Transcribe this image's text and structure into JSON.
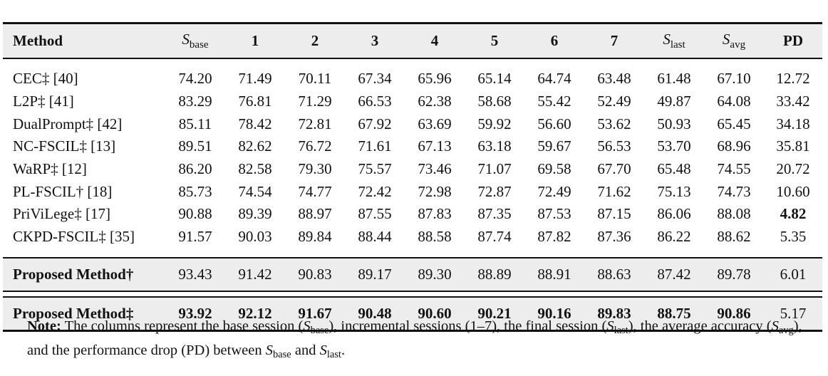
{
  "table": {
    "header": {
      "method": "Method",
      "s_base_sym": "S",
      "s_base_sub": "base",
      "sessions": [
        "1",
        "2",
        "3",
        "4",
        "5",
        "6",
        "7"
      ],
      "s_last_sym": "S",
      "s_last_sub": "last",
      "s_avg_sym": "S",
      "s_avg_sub": "avg",
      "pd": "PD"
    },
    "rows": [
      {
        "method": "CEC‡ [40]",
        "values": [
          "74.20",
          "71.49",
          "70.11",
          "67.34",
          "65.96",
          "65.14",
          "64.74",
          "63.48",
          "61.48",
          "67.10",
          "12.72"
        ]
      },
      {
        "method": "L2P‡ [41]",
        "values": [
          "83.29",
          "76.81",
          "71.29",
          "66.53",
          "62.38",
          "58.68",
          "55.42",
          "52.49",
          "49.87",
          "64.08",
          "33.42"
        ]
      },
      {
        "method": "DualPrompt‡ [42]",
        "values": [
          "85.11",
          "78.42",
          "72.81",
          "67.92",
          "63.69",
          "59.92",
          "56.60",
          "53.62",
          "50.93",
          "65.45",
          "34.18"
        ]
      },
      {
        "method": "NC-FSCIL‡ [13]",
        "values": [
          "89.51",
          "82.62",
          "76.72",
          "71.61",
          "67.13",
          "63.18",
          "59.67",
          "56.53",
          "53.70",
          "68.96",
          "35.81"
        ]
      },
      {
        "method": "WaRP‡ [12]",
        "values": [
          "86.20",
          "82.58",
          "79.30",
          "75.57",
          "73.46",
          "71.07",
          "69.58",
          "67.70",
          "65.48",
          "74.55",
          "20.72"
        ]
      },
      {
        "method": "PL-FSCIL† [18]",
        "values": [
          "85.73",
          "74.54",
          "74.77",
          "72.42",
          "72.98",
          "72.87",
          "72.49",
          "71.62",
          "75.13",
          "74.73",
          "10.60"
        ]
      },
      {
        "method": "PriViLege‡ [17]",
        "values": [
          "90.88",
          "89.39",
          "88.97",
          "87.55",
          "87.83",
          "87.35",
          "87.53",
          "87.15",
          "86.06",
          "88.08",
          "4.82"
        ]
      },
      {
        "method": "CKPD-FSCIL‡ [35]",
        "values": [
          "91.57",
          "90.03",
          "89.84",
          "88.44",
          "88.58",
          "87.74",
          "87.82",
          "87.36",
          "86.22",
          "88.62",
          "5.35"
        ]
      }
    ],
    "proposed_dagger": {
      "method": "Proposed Method†",
      "values": [
        "93.43",
        "91.42",
        "90.83",
        "89.17",
        "89.30",
        "88.89",
        "88.91",
        "88.63",
        "87.42",
        "89.78",
        "6.01"
      ]
    },
    "proposed_ddagger": {
      "method": "Proposed Method‡",
      "values": [
        "93.92",
        "92.12",
        "91.67",
        "90.48",
        "90.60",
        "90.21",
        "90.16",
        "89.83",
        "88.75",
        "90.86",
        "5.17"
      ]
    }
  },
  "note": {
    "label": "Note:",
    "t1": " The columns represent the base session (",
    "s_sym": "S",
    "base_sub": "base",
    "t2": "), incremental sessions (1–7), the final session (",
    "last_sub": "last",
    "t3": "), the average accuracy (",
    "avg_sub": "avg",
    "t4": "), and the performance drop (PD) between ",
    "t5": " and ",
    "t6": "."
  }
}
